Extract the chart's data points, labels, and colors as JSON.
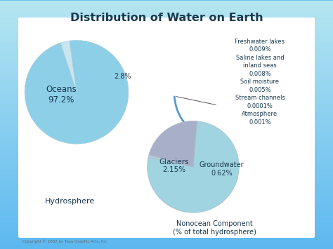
{
  "title": "Distribution of Water on Earth",
  "pie1_values": [
    97.2,
    2.8
  ],
  "pie1_colors": [
    "#8ecfe8",
    "#c8e5f0"
  ],
  "pie1_startangle": 108,
  "pie2_values": [
    2.15,
    0.62,
    0.023
  ],
  "pie2_colors": [
    "#9fd4e0",
    "#a8afc8",
    "#b8cdd8"
  ],
  "pie2_startangle": 168,
  "legend_text": "Freshwater lakes\n0.009%\nSaline lakes and\ninland seas\n0.008%\nSoil moisture\n0.005%\nStream channels\n0.0001%\nAtmosphere\n0.001%",
  "subtitle1": "Hydrosphere",
  "subtitle2": "Nonocean Component\n(% of total hydrosphere)",
  "label_oceans": "Oceans\n97.2%",
  "label_28": "2.8%",
  "label_glaciers": "Glaciers\n2.15%",
  "label_groundwater": "Groundwater\n0.62%",
  "copyright": "Copyright © 2002 by Tasa Graphic Arts, Inc.",
  "bg_outer": "#5bb8f0",
  "bg_inner": "#d8eef8",
  "bg_white": "#ffffff",
  "text_dark": "#1a3a50"
}
